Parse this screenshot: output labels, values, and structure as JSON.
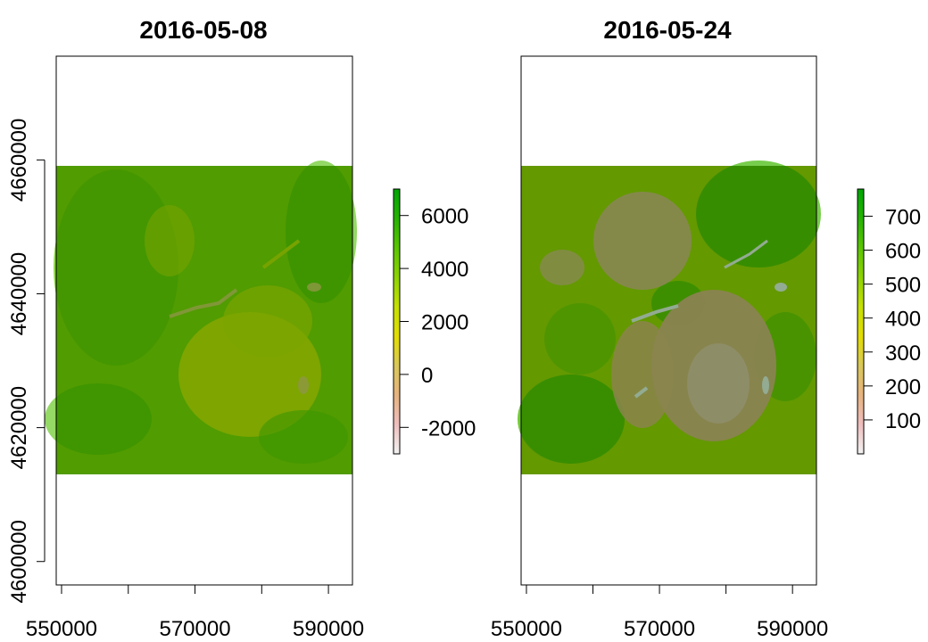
{
  "chart_data": [
    {
      "type": "heatmap",
      "title": "2016-05-08",
      "x_ticks": [
        "550000",
        "570000",
        "590000"
      ],
      "x_tick_values": [
        550000,
        560000,
        570000,
        580000,
        590000
      ],
      "xlim": [
        549200,
        593600
      ],
      "y_ticks": [
        "4600000",
        "4620000",
        "4640000",
        "4660000"
      ],
      "y_tick_values": [
        4600000,
        4620000,
        4640000,
        4660000
      ],
      "ylim": [
        4596500,
        4675500
      ],
      "raster_extent": {
        "x": [
          549200,
          593600
        ],
        "y": [
          4613300,
          4659700
        ]
      },
      "legend": {
        "ticks": [
          "6000",
          "4000",
          "2000",
          "0",
          "-2000"
        ],
        "tick_values": [
          6000,
          4000,
          2000,
          0,
          -2000
        ],
        "range": [
          -3000,
          7000
        ]
      },
      "grid": false
    },
    {
      "type": "heatmap",
      "title": "2016-05-24",
      "x_ticks": [
        "550000",
        "570000",
        "590000"
      ],
      "x_tick_values": [
        550000,
        560000,
        570000,
        580000,
        590000
      ],
      "xlim": [
        549200,
        593600
      ],
      "y_ticks": [],
      "ylim": [
        4596500,
        4675500
      ],
      "raster_extent": {
        "x": [
          549200,
          593600
        ],
        "y": [
          4613300,
          4659700
        ]
      },
      "legend": {
        "ticks": [
          "700",
          "600",
          "500",
          "400",
          "300",
          "200",
          "100"
        ],
        "tick_values": [
          700,
          600,
          500,
          400,
          300,
          200,
          100
        ],
        "range": [
          0,
          780
        ]
      },
      "grid": false
    }
  ],
  "colors": {
    "ramp": [
      "#F2F2F2",
      "#EEBEBE",
      "#E6B37F",
      "#D9C85A",
      "#E2DD00",
      "#C5E000",
      "#8DD300",
      "#5BC500",
      "#26B300",
      "#00A600"
    ],
    "frame": "#000000"
  }
}
